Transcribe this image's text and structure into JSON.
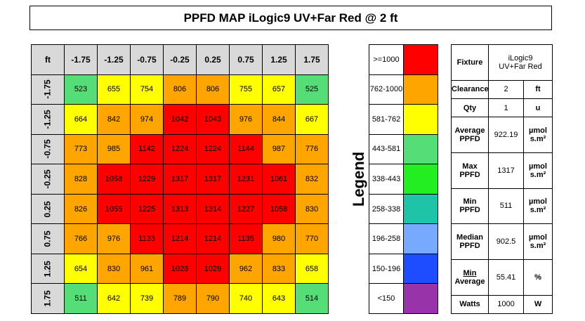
{
  "title": "PPFD MAP iLogic9 UV+Far Red @ 2 ft",
  "chart_data": {
    "type": "heatmap",
    "corner_label": "ft",
    "x_labels": [
      "-1.75",
      "-1.25",
      "-0.75",
      "-0.25",
      "0.25",
      "0.75",
      "1.25",
      "1.75"
    ],
    "y_labels": [
      "-1.75",
      "-1.25",
      "-0.75",
      "-0.25",
      "0.25",
      "0.75",
      "1.25",
      "1.75"
    ],
    "values": [
      [
        523,
        655,
        754,
        806,
        806,
        755,
        657,
        525
      ],
      [
        664,
        842,
        974,
        1042,
        1043,
        976,
        844,
        667
      ],
      [
        773,
        985,
        1142,
        1224,
        1224,
        1144,
        987,
        776
      ],
      [
        828,
        1058,
        1229,
        1317,
        1317,
        1231,
        1061,
        832
      ],
      [
        826,
        1055,
        1225,
        1313,
        1314,
        1227,
        1058,
        830
      ],
      [
        766,
        976,
        1133,
        1214,
        1214,
        1135,
        980,
        770
      ],
      [
        654,
        830,
        961,
        1028,
        1029,
        962,
        833,
        658
      ],
      [
        511,
        642,
        739,
        789,
        790,
        740,
        643,
        514
      ]
    ]
  },
  "legend": {
    "title": "Legend",
    "entries": [
      {
        "label": ">=1000",
        "min": 1000,
        "color": "#ff0000"
      },
      {
        "label": "762-1000",
        "min": 762,
        "color": "#ffa500"
      },
      {
        "label": "581-762",
        "min": 581,
        "color": "#ffff00"
      },
      {
        "label": "443-581",
        "min": 443,
        "color": "#55dd77"
      },
      {
        "label": "338-443",
        "min": 338,
        "color": "#22ee22"
      },
      {
        "label": "258-338",
        "min": 258,
        "color": "#1fc4a8"
      },
      {
        "label": "196-258",
        "min": 196,
        "color": "#77aaff"
      },
      {
        "label": "150-196",
        "min": 150,
        "color": "#1e4cff"
      },
      {
        "label": "<150",
        "min": 0,
        "color": "#9933aa"
      }
    ]
  },
  "stats": {
    "fixture": {
      "label": "Fixture",
      "value_line1": "iLogic9",
      "value_line2": "UV+Far Red"
    },
    "clearance": {
      "label": "Clearance",
      "value": "2",
      "unit": "ft"
    },
    "qty": {
      "label": "Qty",
      "value": "1",
      "unit": "u"
    },
    "average": {
      "label_line1": "Average",
      "label_line2": "PPFD",
      "value": "922.19",
      "unit_line1": "µmol",
      "unit_line2": "s.m²"
    },
    "max": {
      "label_line1": "Max",
      "label_line2": "PPFD",
      "value": "1317",
      "unit_line1": "µmol",
      "unit_line2": "s.m²"
    },
    "min": {
      "label_line1": "Min",
      "label_line2": "PPFD",
      "value": "511",
      "unit_line1": "µmol",
      "unit_line2": "s.m²"
    },
    "median": {
      "label_line1": "Median",
      "label_line2": "PPFD",
      "value": "902.5",
      "unit_line1": "µmol",
      "unit_line2": "s.m²"
    },
    "uniformity": {
      "label_line1": "Min",
      "label_line2": "Average",
      "value": "55.41",
      "unit": "%"
    },
    "watts": {
      "label": "Watts",
      "value": "1000",
      "unit": "W"
    }
  }
}
